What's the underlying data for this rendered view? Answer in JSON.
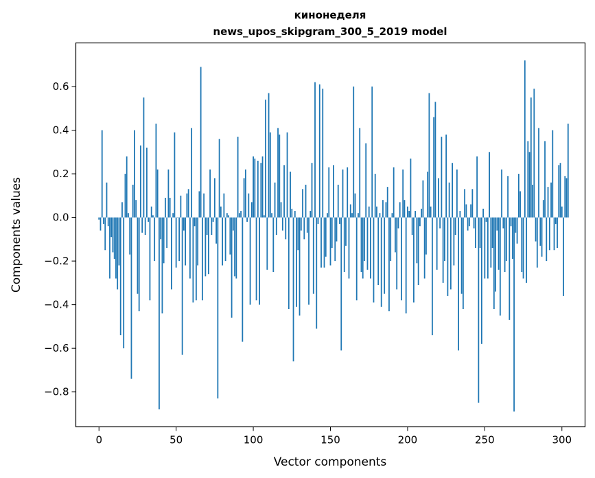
{
  "chart_data": {
    "type": "bar",
    "title": "кинонеделя",
    "subtitle": "news_upos_skipgram_300_5_2019 model",
    "xlabel": "Vector components",
    "ylabel": "Components values",
    "xlim": [
      -15,
      315
    ],
    "ylim": [
      -0.96,
      0.8
    ],
    "xticks": [
      0,
      50,
      100,
      150,
      200,
      250,
      300
    ],
    "xtick_labels": [
      "0",
      "50",
      "100",
      "150",
      "200",
      "250",
      "300"
    ],
    "yticks": [
      -0.8,
      -0.6,
      -0.4,
      -0.2,
      0.0,
      0.2,
      0.4,
      0.6
    ],
    "ytick_labels": [
      "−0.8",
      "−0.6",
      "−0.4",
      "−0.2",
      "0.0",
      "0.2",
      "0.4",
      "0.6"
    ],
    "grid": false,
    "bar_color": "#1f77b4",
    "values": [
      -0.01,
      -0.06,
      0.4,
      -0.03,
      -0.15,
      0.16,
      -0.04,
      -0.28,
      -0.09,
      -0.16,
      -0.19,
      -0.28,
      -0.33,
      -0.22,
      -0.54,
      0.07,
      -0.6,
      0.2,
      0.28,
      0.02,
      -0.17,
      -0.74,
      0.15,
      0.4,
      0.08,
      -0.35,
      -0.43,
      0.33,
      -0.07,
      0.55,
      -0.08,
      0.32,
      -0.02,
      -0.38,
      0.05,
      0.01,
      -0.2,
      0.43,
      0.22,
      -0.88,
      -0.1,
      -0.44,
      -0.21,
      0.09,
      -0.14,
      0.22,
      0.09,
      -0.33,
      0.02,
      0.39,
      -0.23,
      0.0,
      -0.2,
      0.1,
      -0.63,
      -0.06,
      -0.22,
      0.11,
      0.13,
      -0.28,
      0.41,
      -0.39,
      -0.04,
      -0.38,
      -0.22,
      0.12,
      0.69,
      -0.38,
      0.11,
      -0.27,
      -0.08,
      -0.26,
      0.22,
      -0.08,
      -0.02,
      0.18,
      -0.12,
      -0.83,
      0.36,
      0.05,
      -0.22,
      0.11,
      -0.2,
      0.02,
      0.01,
      -0.17,
      -0.46,
      -0.06,
      -0.27,
      -0.28,
      0.37,
      0.02,
      0.03,
      -0.57,
      0.18,
      0.22,
      -0.02,
      0.11,
      -0.4,
      0.07,
      0.28,
      0.27,
      -0.38,
      0.26,
      -0.4,
      0.25,
      0.28,
      0.01,
      0.54,
      -0.24,
      0.57,
      0.39,
      0.02,
      -0.25,
      0.16,
      -0.08,
      0.41,
      0.38,
      0.07,
      -0.06,
      0.24,
      -0.1,
      0.39,
      -0.42,
      0.21,
      0.04,
      -0.66,
      0.03,
      -0.41,
      -0.15,
      -0.45,
      -0.06,
      0.13,
      -0.1,
      0.15,
      -0.07,
      -0.4,
      0.03,
      0.25,
      -0.35,
      0.62,
      -0.51,
      -0.03,
      0.61,
      -0.23,
      0.59,
      -0.23,
      -0.18,
      0.02,
      0.23,
      -0.22,
      -0.14,
      0.24,
      -0.2,
      -0.11,
      0.15,
      -0.03,
      -0.61,
      0.22,
      -0.25,
      -0.13,
      0.23,
      -0.28,
      0.06,
      0.02,
      0.6,
      0.11,
      -0.38,
      0.02,
      0.41,
      -0.25,
      -0.28,
      -0.2,
      0.34,
      -0.24,
      0.05,
      -0.28,
      0.6,
      -0.39,
      0.2,
      0.05,
      -0.31,
      0.02,
      -0.41,
      0.08,
      -0.35,
      0.07,
      0.14,
      -0.43,
      -0.2,
      0.02,
      0.23,
      -0.16,
      -0.33,
      -0.05,
      0.07,
      -0.38,
      0.22,
      0.08,
      -0.44,
      0.05,
      0.03,
      0.27,
      -0.08,
      -0.39,
      0.03,
      -0.21,
      -0.31,
      -0.04,
      0.04,
      0.17,
      -0.28,
      -0.17,
      0.21,
      0.57,
      0.05,
      -0.54,
      0.46,
      0.53,
      -0.24,
      0.18,
      -0.05,
      0.37,
      -0.3,
      -0.2,
      0.38,
      -0.36,
      0.16,
      -0.33,
      0.25,
      -0.22,
      -0.08,
      0.22,
      -0.61,
      0.03,
      -0.35,
      -0.42,
      0.13,
      0.06,
      -0.06,
      -0.04,
      0.06,
      0.13,
      -0.05,
      -0.14,
      0.28,
      -0.85,
      -0.14,
      -0.58,
      0.04,
      -0.28,
      -0.02,
      -0.28,
      0.3,
      -0.23,
      -0.14,
      -0.42,
      -0.34,
      -0.06,
      -0.24,
      -0.45,
      0.22,
      -0.05,
      -0.25,
      -0.2,
      0.19,
      -0.47,
      -0.04,
      -0.19,
      -0.89,
      -0.07,
      -0.12,
      0.2,
      0.12,
      -0.25,
      -0.28,
      0.72,
      -0.3,
      0.35,
      0.3,
      0.55,
      0.15,
      0.59,
      -0.11,
      -0.23,
      0.41,
      -0.13,
      -0.18,
      0.08,
      0.35,
      -0.2,
      0.14,
      -0.15,
      0.16,
      0.4,
      -0.15,
      -0.03,
      -0.14,
      0.24,
      0.25,
      0.05,
      -0.36,
      0.19,
      0.18,
      0.43
    ]
  }
}
